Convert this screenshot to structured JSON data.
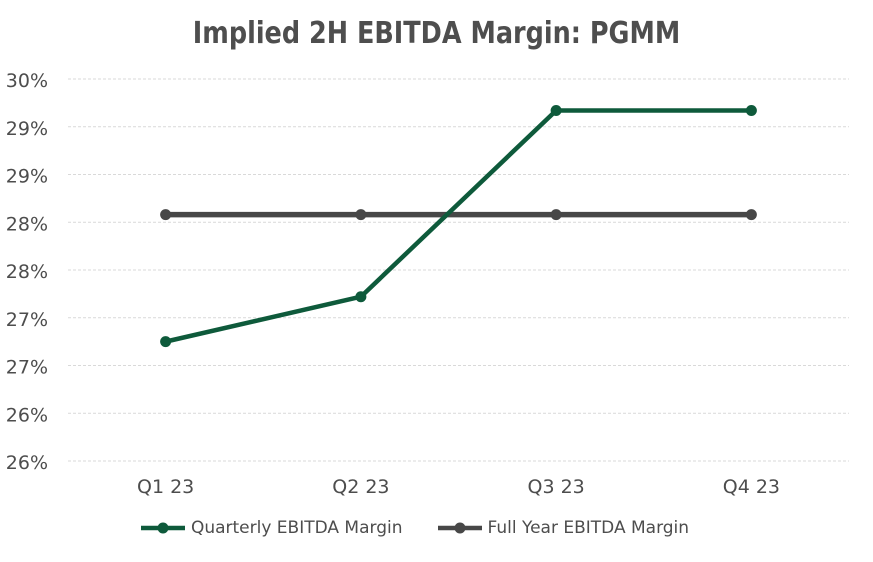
{
  "page": {
    "background": "#FFFFFF"
  },
  "chart_data": {
    "type": "line",
    "title": "Implied 2H EBITDA Margin: PGMM",
    "categories": [
      "Q1 23",
      "Q2 23",
      "Q3 23",
      "Q4 23"
    ],
    "series": [
      {
        "name": "Quarterly EBITDA Margin",
        "color": "#0E5A3B",
        "values": [
          27.25,
          27.72,
          29.67,
          29.67
        ]
      },
      {
        "name": "Full Year EBITDA Margin",
        "color": "#474747",
        "values": [
          28.58,
          28.58,
          28.58,
          28.58
        ]
      }
    ],
    "y_axis": {
      "min": 26,
      "max": 30,
      "step": 0.5,
      "tick_labels_top_to_bottom": [
        "30%",
        "29%",
        "29%",
        "28%",
        "28%",
        "27%",
        "27%",
        "26%",
        "26%"
      ]
    },
    "grid": {
      "horizontal": true,
      "vertical": false,
      "style": "dotted",
      "color": "#D9D9D9"
    },
    "legend_position": "bottom",
    "text_color": "#4D4D4D",
    "marker": "circle"
  }
}
